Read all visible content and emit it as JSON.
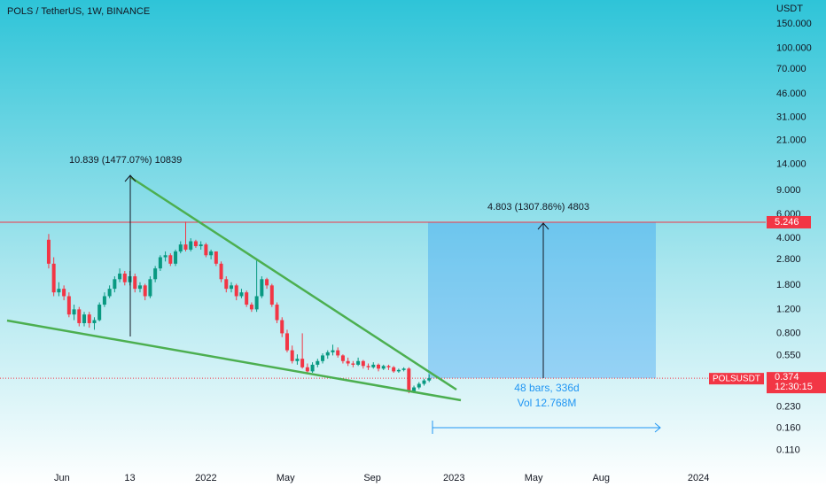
{
  "chart_data": {
    "type": "candlestick",
    "title": "POLS / TetherUS, 1W, BINANCE",
    "y_axis_label": "USDT",
    "symbol": "POLSUSDT",
    "countdown": "12:30:15",
    "log_scale": true,
    "up_color": "#089981",
    "down_color": "#f23645",
    "marker_price": 5.246,
    "last_price": 0.374,
    "annotations": [
      "10.839 (1477.07%) 10839",
      "4.803 (1307.86%) 4803",
      "48 bars, 336d",
      "Vol 12.768M"
    ],
    "xlim": [
      -9.6,
      141
    ],
    "xticks": [
      {
        "value": 2.6,
        "label": "Jun"
      },
      {
        "value": 16,
        "label": "13"
      },
      {
        "value": 31,
        "label": "2022"
      },
      {
        "value": 46.7,
        "label": "May"
      },
      {
        "value": 63.8,
        "label": "Sep"
      },
      {
        "value": 79.9,
        "label": "2023"
      },
      {
        "value": 95.6,
        "label": "May"
      },
      {
        "value": 108.9,
        "label": "Aug"
      },
      {
        "value": 128.1,
        "label": "2024"
      }
    ],
    "ylim": [
      0.08,
      226
    ],
    "yticks": [
      {
        "value": 150,
        "label": "150.000"
      },
      {
        "value": 100,
        "label": "100.000"
      },
      {
        "value": 70,
        "label": "70.000"
      },
      {
        "value": 46,
        "label": "46.000"
      },
      {
        "value": 31,
        "label": "31.000"
      },
      {
        "value": 21,
        "label": "21.000"
      },
      {
        "value": 14,
        "label": "14.000"
      },
      {
        "value": 9,
        "label": "9.000"
      },
      {
        "value": 6,
        "label": "6.000"
      },
      {
        "value": 4,
        "label": "4.000"
      },
      {
        "value": 2.8,
        "label": "2.800"
      },
      {
        "value": 1.8,
        "label": "1.800"
      },
      {
        "value": 1.2,
        "label": "1.200"
      },
      {
        "value": 0.8,
        "label": "0.800"
      },
      {
        "value": 0.55,
        "label": "0.550"
      },
      {
        "value": 0.23,
        "label": "0.230"
      },
      {
        "value": 0.16,
        "label": "0.160"
      },
      {
        "value": 0.11,
        "label": "0.110"
      }
    ],
    "open": [
      3.9,
      2.6,
      1.6,
      1.7,
      1.5,
      1.1,
      1.2,
      0.95,
      1.1,
      0.95,
      1.0,
      1.3,
      1.5,
      1.7,
      2.0,
      2.2,
      1.9,
      2.1,
      1.7,
      1.8,
      1.5,
      2.0,
      2.4,
      2.9,
      3.0,
      2.6,
      3.2,
      3.6,
      3.3,
      3.8,
      3.5,
      3.6,
      3.0,
      3.2,
      2.6,
      2.0,
      1.7,
      1.8,
      1.5,
      1.6,
      1.3,
      1.2,
      1.5,
      2.0,
      1.8,
      1.3,
      1.0,
      0.8,
      0.6,
      0.5,
      0.52,
      0.45,
      0.42,
      0.47,
      0.5,
      0.55,
      0.58,
      0.6,
      0.55,
      0.5,
      0.48,
      0.47,
      0.5,
      0.46,
      0.45,
      0.47,
      0.44,
      0.46,
      0.45,
      0.42,
      0.43,
      0.44,
      0.3,
      0.32,
      0.34,
      0.36
    ],
    "high": [
      4.3,
      2.9,
      1.9,
      1.8,
      1.6,
      1.3,
      1.25,
      1.15,
      1.15,
      1.05,
      1.35,
      1.6,
      1.8,
      2.1,
      2.4,
      2.3,
      2.3,
      2.2,
      1.9,
      1.85,
      2.1,
      2.5,
      3.0,
      3.2,
      3.1,
      3.3,
      3.8,
      5.3,
      4.0,
      3.9,
      3.8,
      3.7,
      3.3,
      3.2,
      2.7,
      2.1,
      1.9,
      1.85,
      1.7,
      1.65,
      1.35,
      2.8,
      2.1,
      2.05,
      1.85,
      1.35,
      1.05,
      0.85,
      0.65,
      0.56,
      0.8,
      0.48,
      0.49,
      0.52,
      0.57,
      0.6,
      0.66,
      0.63,
      0.56,
      0.53,
      0.5,
      0.53,
      0.51,
      0.48,
      0.49,
      0.48,
      0.47,
      0.47,
      0.46,
      0.44,
      0.45,
      0.45,
      0.33,
      0.35,
      0.37,
      0.4
    ],
    "low": [
      2.4,
      1.5,
      1.5,
      1.4,
      1.05,
      1.0,
      0.9,
      0.9,
      0.88,
      0.85,
      0.98,
      1.25,
      1.45,
      1.6,
      1.9,
      1.8,
      1.8,
      1.6,
      1.6,
      1.4,
      1.45,
      1.9,
      2.3,
      2.7,
      2.5,
      2.5,
      3.1,
      3.2,
      3.2,
      3.4,
      3.3,
      2.9,
      2.8,
      2.5,
      1.9,
      1.6,
      1.6,
      1.4,
      1.45,
      1.25,
      1.15,
      1.15,
      1.45,
      1.7,
      1.25,
      0.95,
      0.75,
      0.58,
      0.48,
      0.47,
      0.44,
      0.4,
      0.41,
      0.45,
      0.48,
      0.52,
      0.55,
      0.53,
      0.48,
      0.46,
      0.45,
      0.46,
      0.44,
      0.43,
      0.44,
      0.42,
      0.43,
      0.43,
      0.41,
      0.41,
      0.42,
      0.29,
      0.29,
      0.31,
      0.33,
      0.35
    ],
    "close": [
      2.6,
      1.6,
      1.7,
      1.5,
      1.1,
      1.2,
      0.95,
      1.1,
      0.95,
      1.0,
      1.3,
      1.5,
      1.7,
      2.0,
      2.2,
      1.9,
      2.1,
      1.7,
      1.8,
      1.5,
      2.0,
      2.4,
      2.9,
      3.0,
      2.6,
      3.2,
      3.6,
      3.3,
      3.8,
      3.5,
      3.6,
      3.0,
      3.2,
      2.6,
      2.0,
      1.7,
      1.8,
      1.5,
      1.6,
      1.3,
      1.2,
      1.5,
      2.0,
      1.8,
      1.3,
      1.0,
      0.8,
      0.6,
      0.5,
      0.52,
      0.45,
      0.42,
      0.47,
      0.5,
      0.55,
      0.58,
      0.6,
      0.55,
      0.5,
      0.48,
      0.47,
      0.5,
      0.46,
      0.45,
      0.47,
      0.44,
      0.46,
      0.45,
      0.42,
      0.43,
      0.44,
      0.3,
      0.32,
      0.34,
      0.36,
      0.374
    ]
  }
}
